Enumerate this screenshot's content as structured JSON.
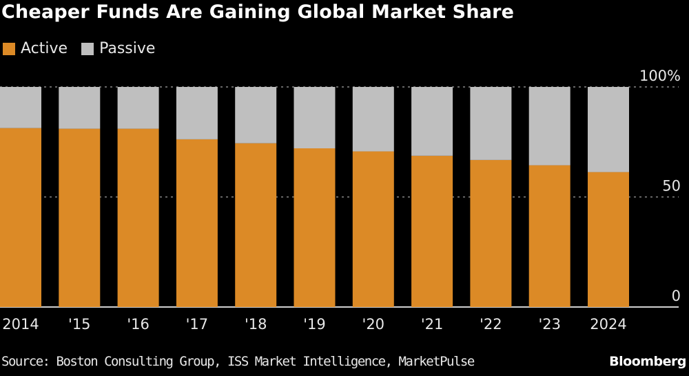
{
  "header": {
    "title": "Cheaper Funds Are Gaining Global Market Share"
  },
  "legend": [
    {
      "label": "Active",
      "color": "#dc8a26"
    },
    {
      "label": "Passive",
      "color": "#bfbfbf"
    }
  ],
  "footer": {
    "source": "Source: Boston Consulting Group, ISS Market Intelligence, MarketPulse",
    "brand": "Bloomberg"
  },
  "chart_data": {
    "type": "bar",
    "stacked": true,
    "title": "Cheaper Funds Are Gaining Global Market Share",
    "categories": [
      "2014",
      "'15",
      "'16",
      "'17",
      "'18",
      "'19",
      "'20",
      "'21",
      "'22",
      "'23",
      "2024"
    ],
    "series": [
      {
        "name": "Active",
        "color": "#dc8a26",
        "values": [
          81.3,
          81.0,
          81.0,
          76.2,
          74.4,
          72.1,
          70.7,
          68.7,
          66.8,
          64.4,
          61.3
        ]
      },
      {
        "name": "Passive",
        "color": "#bfbfbf",
        "values": [
          18.7,
          19.0,
          19.0,
          23.8,
          25.6,
          27.9,
          29.3,
          31.3,
          33.2,
          35.6,
          38.7
        ]
      }
    ],
    "ylim": [
      0,
      100
    ],
    "yticks": [
      0,
      50,
      100
    ],
    "ytick_labels": [
      "0",
      "50",
      "100%"
    ],
    "y_axis_position": "right",
    "grid": true,
    "legend_position": "top-left",
    "xlabel": "",
    "ylabel": ""
  }
}
